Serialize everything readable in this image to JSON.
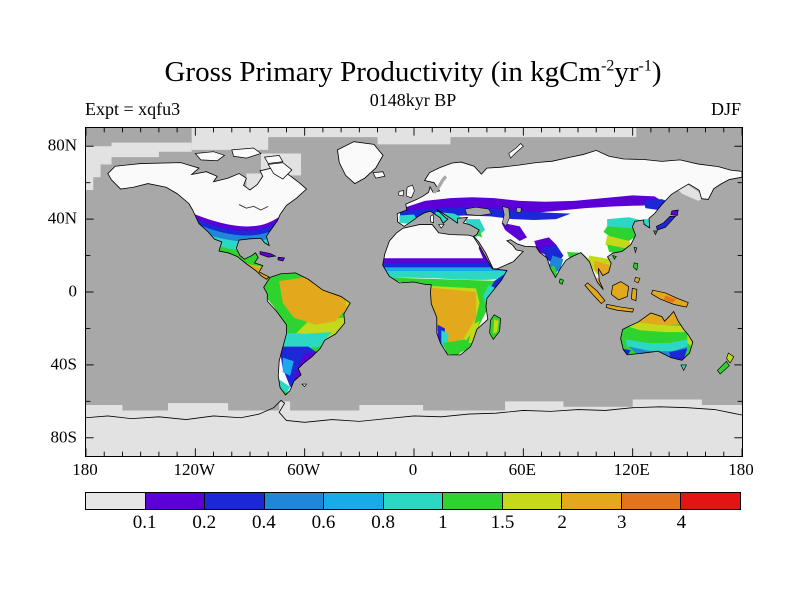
{
  "title": {
    "prefix": "Gross Primary Productivity (in kgCm",
    "sup1": "-2",
    "mid": "yr",
    "sup2": "-1",
    "suffix": ")"
  },
  "subtitle": "0148kyr BP",
  "experiment_label": "Expt = xqfu3",
  "season_label": "DJF",
  "axes": {
    "x_ticks": [
      {
        "label": "180",
        "lon": -180
      },
      {
        "label": "120W",
        "lon": -120
      },
      {
        "label": "60W",
        "lon": -60
      },
      {
        "label": "0",
        "lon": 0
      },
      {
        "label": "60E",
        "lon": 60
      },
      {
        "label": "120E",
        "lon": 120
      },
      {
        "label": "180",
        "lon": 180
      }
    ],
    "y_ticks": [
      {
        "label": "80N",
        "lat": 80
      },
      {
        "label": "40N",
        "lat": 40
      },
      {
        "label": "0",
        "lat": 0
      },
      {
        "label": "40S",
        "lat": -40
      },
      {
        "label": "80S",
        "lat": -80
      }
    ],
    "x_minor_step_deg": 10,
    "y_minor_step_deg": 20
  },
  "colorbar": {
    "boundary_labels": [
      "0.1",
      "0.2",
      "0.4",
      "0.6",
      "0.8",
      "1",
      "1.5",
      "2",
      "3",
      "4"
    ],
    "colors": [
      "#e6e6e6",
      "#5c00d8",
      "#1c28d8",
      "#1f86d8",
      "#19aae8",
      "#2cd8c4",
      "#2fd32f",
      "#c3d919",
      "#e3a91c",
      "#e3731c",
      "#e31414"
    ]
  },
  "map_colors": {
    "ocean": "#a8a8a8",
    "land": "#fafafa",
    "ice": "#e2e2e2",
    "coastline": "#000000",
    "lake": "#a8a8a8"
  },
  "chart_data": {
    "type": "heatmap",
    "title": "Gross Primary Productivity (in kgCm-2yr-1)",
    "subtitle": "0148kyr BP",
    "experiment": "xqfu3",
    "season": "DJF",
    "units": "kgC m-2 yr-1",
    "projection": "equirectangular world map, lon -180..180, lat -90..90",
    "contour_levels": [
      0.1,
      0.2,
      0.4,
      0.6,
      0.8,
      1,
      1.5,
      2,
      3,
      4
    ],
    "level_colors": [
      "#e6e6e6",
      "#5c00d8",
      "#1c28d8",
      "#1f86d8",
      "#19aae8",
      "#2cd8c4",
      "#2fd32f",
      "#c3d919",
      "#e3a91c",
      "#e3731c",
      "#e31414"
    ],
    "legend_position": "bottom horizontal colorbar",
    "grid": false,
    "regions": [
      {
        "name": "High-latitude Northern Hemisphere land (Canada, Siberia, Europe north of ~50N)",
        "value": "<0.1 (white/light gray, winter)"
      },
      {
        "name": "Sahara and Arabian deserts, Tibet, Iran",
        "value": "<0.1"
      },
      {
        "name": "Southern USA band (California to mid-Atlantic)",
        "value": "0.1-0.8 purple-blue-cyan gradient southward"
      },
      {
        "name": "Mexico and Central America",
        "value": "0.8-3 cyan-green-orange"
      },
      {
        "name": "Amazon basin",
        "value": "2-3 (amber core)"
      },
      {
        "name": "Patagonia / Argentina",
        "value": "0.1-0.6 blue with purple fringe"
      },
      {
        "name": "Sahel band ~15N across Africa",
        "value": "0.1-1 purple-blue-cyan"
      },
      {
        "name": "Central and southern Africa (Congo to Kalahari)",
        "value": "1.5-3 green to amber"
      },
      {
        "name": "Madagascar",
        "value": "1-2 green/yellow-green"
      },
      {
        "name": "Mediterranean Europe",
        "value": "0.1-1 purple band north, blue-cyan coasts"
      },
      {
        "name": "Southern Siberia band ~50N",
        "value": "0.1-0.2 purple"
      },
      {
        "name": "China southeast gradient",
        "value": "0.6-2 cyan-green-yellow"
      },
      {
        "name": "India",
        "value": "0.1-0.8 purple NW to cyan-green SE coastal"
      },
      {
        "name": "Indochina, Indonesia, New Guinea",
        "value": "1.5-4 yellow-green to orange"
      },
      {
        "name": "Australia",
        "value": "orange north, green center, cyan-blue south"
      },
      {
        "name": "New Zealand",
        "value": "1-2 green/yellow-green"
      },
      {
        "name": "Ocean",
        "value": "no data (gray)"
      },
      {
        "name": "Antarctica, Arctic sea ice, Greenland",
        "value": "ice (light gray)"
      }
    ]
  }
}
